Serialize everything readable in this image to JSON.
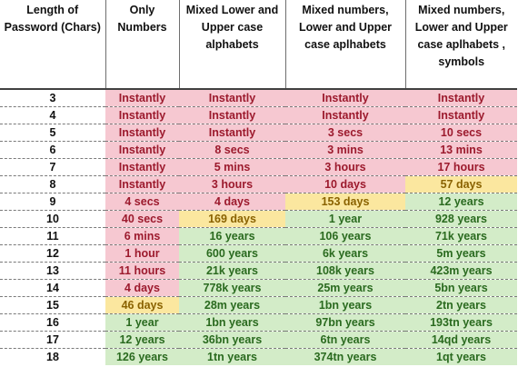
{
  "headers": [
    "Length of Password (Chars)",
    "Only Numbers",
    "Mixed Lower and Upper case alphabets",
    "Mixed numbers, Lower and Upper case aplhabets",
    "Mixed numbers, Lower and Upper case aplhabets , symbols"
  ],
  "colors": {
    "red": "#f6c8d1",
    "yellow": "#fbe79f",
    "green": "#d3ecc8"
  },
  "rows": [
    {
      "len": "3",
      "cells": [
        {
          "t": "Instantly",
          "c": "red"
        },
        {
          "t": "Instantly",
          "c": "red"
        },
        {
          "t": "Instantly",
          "c": "red"
        },
        {
          "t": "Instantly",
          "c": "red"
        }
      ]
    },
    {
      "len": "4",
      "cells": [
        {
          "t": "Instantly",
          "c": "red"
        },
        {
          "t": "Instantly",
          "c": "red"
        },
        {
          "t": "Instantly",
          "c": "red"
        },
        {
          "t": "Instantly",
          "c": "red"
        }
      ]
    },
    {
      "len": "5",
      "cells": [
        {
          "t": "Instantly",
          "c": "red"
        },
        {
          "t": "Instantly",
          "c": "red"
        },
        {
          "t": "3 secs",
          "c": "red"
        },
        {
          "t": "10 secs",
          "c": "red"
        }
      ]
    },
    {
      "len": "6",
      "cells": [
        {
          "t": "Instantly",
          "c": "red"
        },
        {
          "t": "8 secs",
          "c": "red"
        },
        {
          "t": "3 mins",
          "c": "red"
        },
        {
          "t": "13 mins",
          "c": "red"
        }
      ]
    },
    {
      "len": "7",
      "cells": [
        {
          "t": "Instantly",
          "c": "red"
        },
        {
          "t": "5 mins",
          "c": "red"
        },
        {
          "t": "3 hours",
          "c": "red"
        },
        {
          "t": "17 hours",
          "c": "red"
        }
      ]
    },
    {
      "len": "8",
      "cells": [
        {
          "t": "Instantly",
          "c": "red"
        },
        {
          "t": "3 hours",
          "c": "red"
        },
        {
          "t": "10 days",
          "c": "red"
        },
        {
          "t": "57 days",
          "c": "yellow"
        }
      ]
    },
    {
      "len": "9",
      "cells": [
        {
          "t": "4 secs",
          "c": "red"
        },
        {
          "t": "4 days",
          "c": "red"
        },
        {
          "t": "153 days",
          "c": "yellow"
        },
        {
          "t": "12 years",
          "c": "green"
        }
      ]
    },
    {
      "len": "10",
      "cells": [
        {
          "t": "40 secs",
          "c": "red"
        },
        {
          "t": "169 days",
          "c": "yellow"
        },
        {
          "t": "1 year",
          "c": "green"
        },
        {
          "t": "928 years",
          "c": "green"
        }
      ]
    },
    {
      "len": "11",
      "cells": [
        {
          "t": "6 mins",
          "c": "red"
        },
        {
          "t": "16 years",
          "c": "green"
        },
        {
          "t": "106 years",
          "c": "green"
        },
        {
          "t": "71k years",
          "c": "green"
        }
      ]
    },
    {
      "len": "12",
      "cells": [
        {
          "t": "1 hour",
          "c": "red"
        },
        {
          "t": "600 years",
          "c": "green"
        },
        {
          "t": "6k years",
          "c": "green"
        },
        {
          "t": "5m years",
          "c": "green"
        }
      ]
    },
    {
      "len": "13",
      "cells": [
        {
          "t": "11 hours",
          "c": "red"
        },
        {
          "t": "21k years",
          "c": "green"
        },
        {
          "t": "108k years",
          "c": "green"
        },
        {
          "t": "423m years",
          "c": "green"
        }
      ]
    },
    {
      "len": "14",
      "cells": [
        {
          "t": "4 days",
          "c": "red"
        },
        {
          "t": "778k years",
          "c": "green"
        },
        {
          "t": "25m years",
          "c": "green"
        },
        {
          "t": "5bn years",
          "c": "green"
        }
      ]
    },
    {
      "len": "15",
      "cells": [
        {
          "t": "46 days",
          "c": "yellow"
        },
        {
          "t": "28m years",
          "c": "green"
        },
        {
          "t": "1bn years",
          "c": "green"
        },
        {
          "t": "2tn years",
          "c": "green"
        }
      ]
    },
    {
      "len": "16",
      "cells": [
        {
          "t": "1 year",
          "c": "green"
        },
        {
          "t": "1bn years",
          "c": "green"
        },
        {
          "t": "97bn years",
          "c": "green"
        },
        {
          "t": "193tn years",
          "c": "green"
        }
      ]
    },
    {
      "len": "17",
      "cells": [
        {
          "t": "12 years",
          "c": "green"
        },
        {
          "t": "36bn years",
          "c": "green"
        },
        {
          "t": "6tn years",
          "c": "green"
        },
        {
          "t": "14qd years",
          "c": "green"
        }
      ]
    },
    {
      "len": "18",
      "cells": [
        {
          "t": "126 years",
          "c": "green"
        },
        {
          "t": "1tn years",
          "c": "green"
        },
        {
          "t": "374tn years",
          "c": "green"
        },
        {
          "t": "1qt years",
          "c": "green"
        }
      ]
    }
  ]
}
